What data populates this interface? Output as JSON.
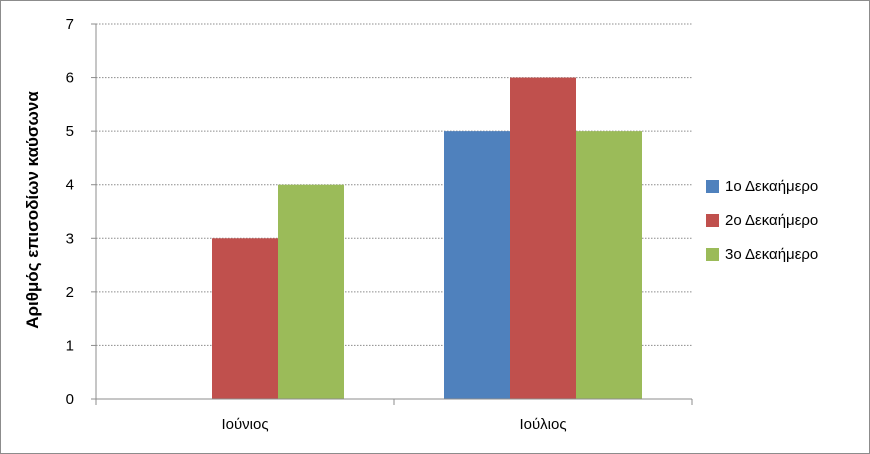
{
  "chart_data": {
    "type": "bar",
    "title": "",
    "xlabel": "",
    "ylabel": "Αριθμός επισοδίων καύσωνα",
    "categories": [
      "Ιούνιος",
      "Ιούλιος"
    ],
    "ylim": [
      0,
      7
    ],
    "yticks": [
      0,
      1,
      2,
      3,
      4,
      5,
      6,
      7
    ],
    "grid": true,
    "legend_position": "right",
    "series": [
      {
        "name": "1ο Δεκαήμερο",
        "color": "#4f81bd",
        "values": [
          0,
          5
        ]
      },
      {
        "name": "2ο Δεκαήμερο",
        "color": "#c0504d",
        "values": [
          3,
          6
        ]
      },
      {
        "name": "3ο Δεκαήμερο",
        "color": "#9bbb59",
        "values": [
          4,
          5
        ]
      }
    ]
  }
}
